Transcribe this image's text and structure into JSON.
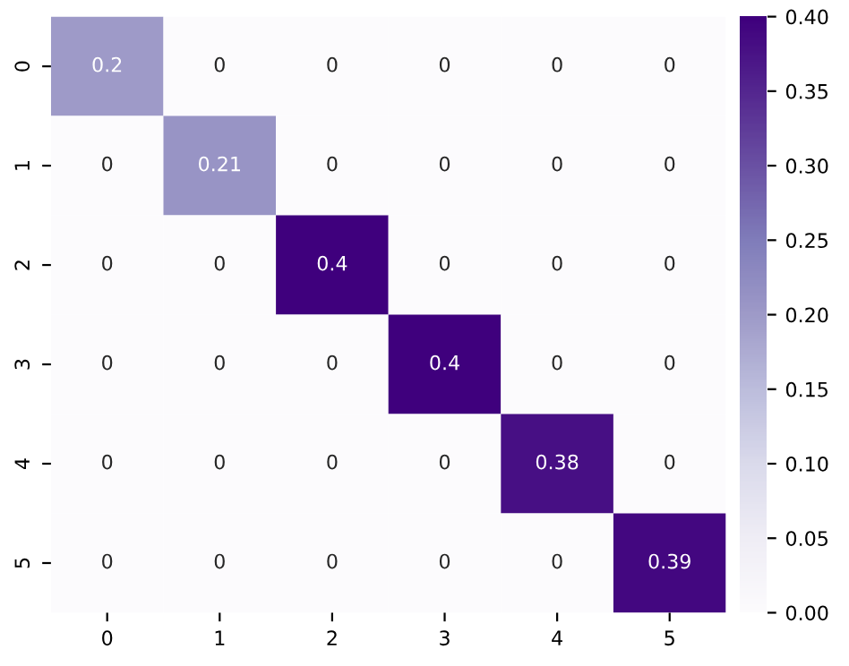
{
  "chart_data": {
    "type": "heatmap",
    "categories": [
      "0",
      "1",
      "2",
      "3",
      "4",
      "5"
    ],
    "y_categories": [
      "0",
      "1",
      "2",
      "3",
      "4",
      "5"
    ],
    "cells": [
      [
        0.2,
        0,
        0,
        0,
        0,
        0
      ],
      [
        0,
        0.21,
        0,
        0,
        0,
        0
      ],
      [
        0,
        0,
        0.4,
        0,
        0,
        0
      ],
      [
        0,
        0,
        0,
        0.4,
        0,
        0
      ],
      [
        0,
        0,
        0,
        0,
        0.38,
        0
      ],
      [
        0,
        0,
        0,
        0,
        0,
        0.39
      ]
    ],
    "data_labels": true,
    "clim": [
      0,
      0.4
    ],
    "cticks": [
      {
        "value": 0,
        "label": "0.00"
      },
      {
        "value": 0.05,
        "label": "0.05"
      },
      {
        "value": 0.1,
        "label": "0.10"
      },
      {
        "value": 0.15,
        "label": "0.15"
      },
      {
        "value": 0.2,
        "label": "0.20"
      },
      {
        "value": 0.25,
        "label": "0.25"
      },
      {
        "value": 0.3,
        "label": "0.30"
      },
      {
        "value": 0.35,
        "label": "0.35"
      },
      {
        "value": 0.4,
        "label": "0.40"
      }
    ]
  }
}
